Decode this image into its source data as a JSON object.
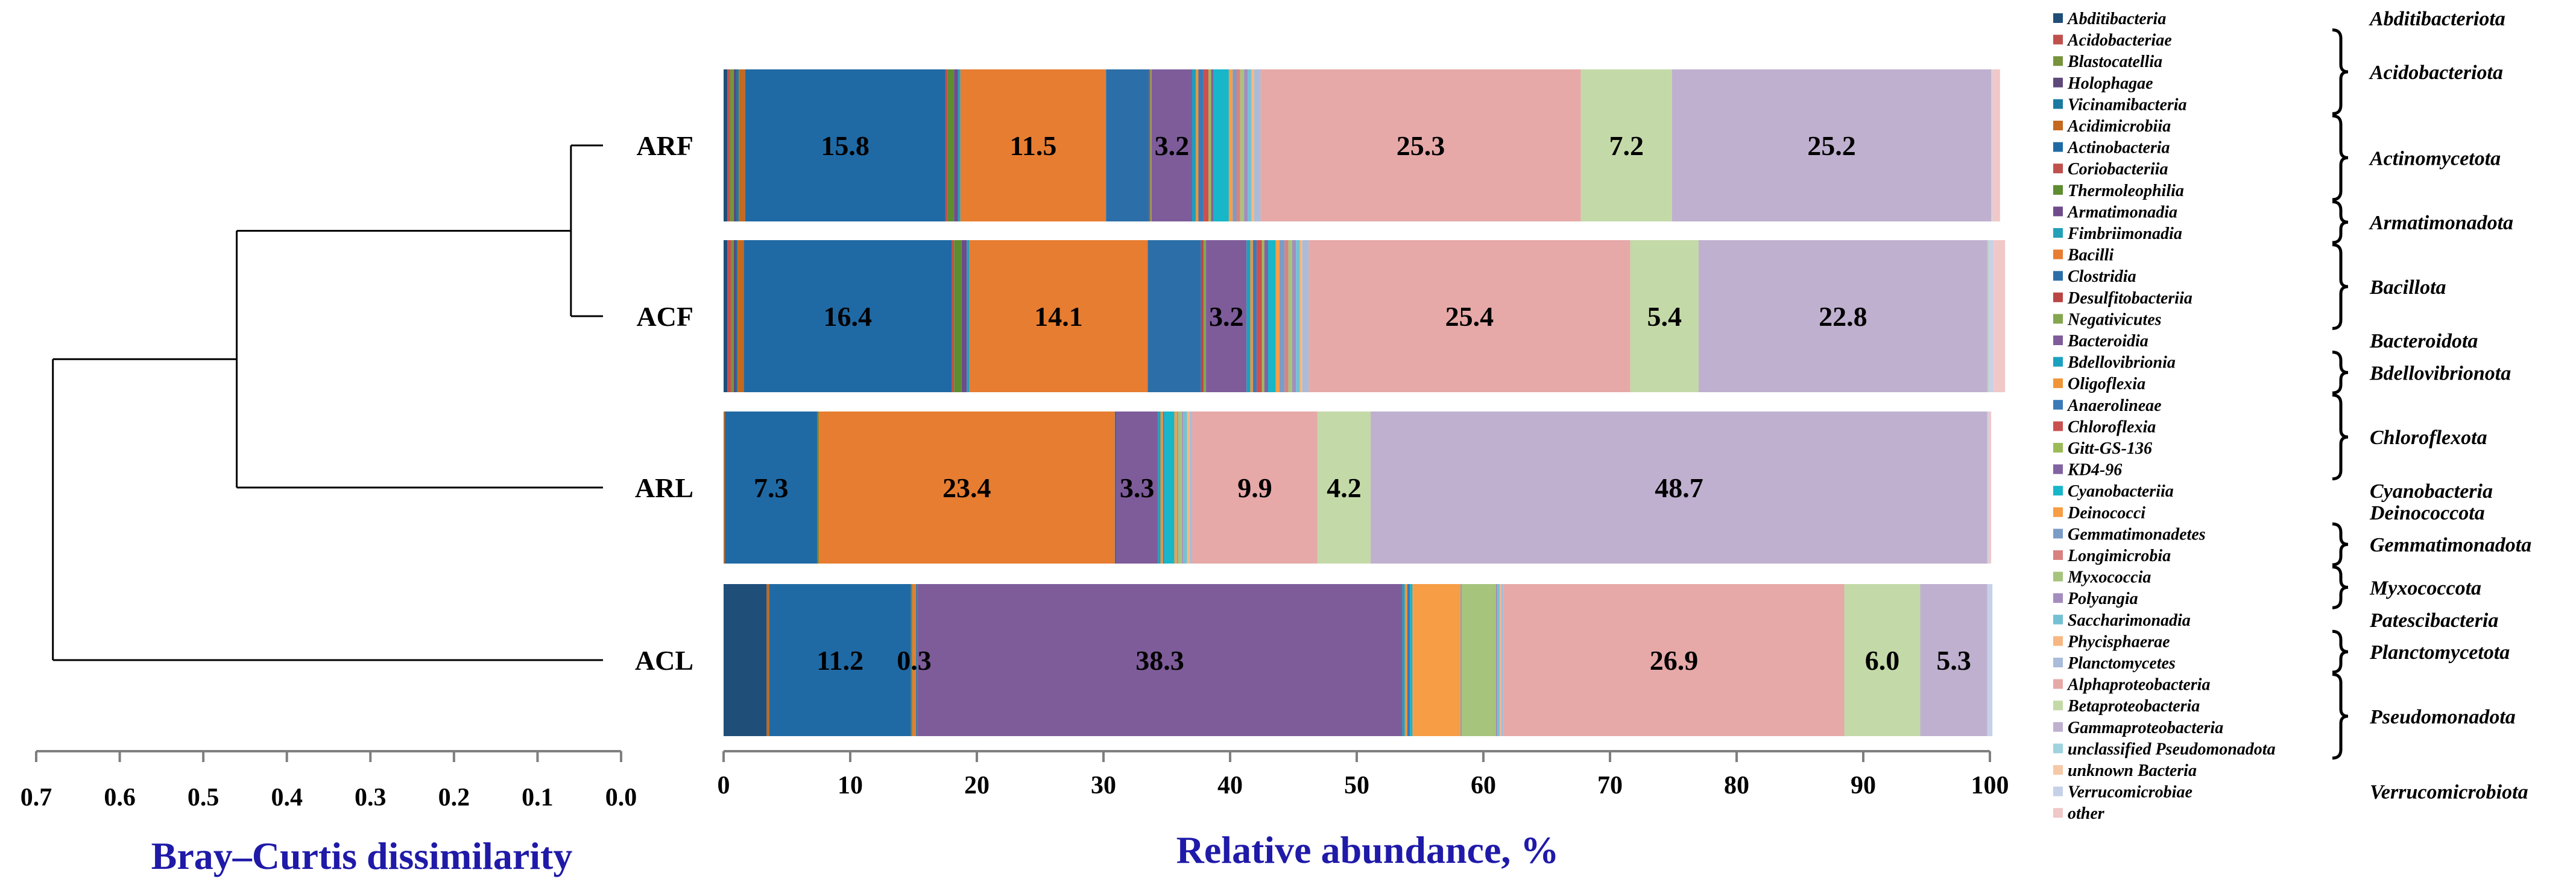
{
  "chart_data": {
    "type": "stacked-bar-with-dendrogram",
    "samples": [
      "ARF",
      "ACF",
      "ARL",
      "ACL"
    ],
    "dendrogram": {
      "xlabel": "Bray–Curtis dissimilarity",
      "xticks": [
        "0.7",
        "0.6",
        "0.5",
        "0.4",
        "0.3",
        "0.2",
        "0.1",
        "0.0"
      ],
      "xlim": [
        0.7,
        0.0
      ],
      "merges": [
        {
          "members": [
            "ARF",
            "ACF"
          ],
          "height": 0.06
        },
        {
          "members": [
            "ARF+ACF",
            "ARL"
          ],
          "height": 0.46
        },
        {
          "members": [
            "ARF+ACF+ARL",
            "ACL"
          ],
          "height": 0.68
        }
      ]
    },
    "bars": {
      "xlabel": "Relative abundance, %",
      "xticks": [
        "0",
        "10",
        "20",
        "30",
        "40",
        "50",
        "60",
        "70",
        "80",
        "90",
        "100"
      ],
      "xlim": [
        0,
        100
      ]
    },
    "series": [
      {
        "name": "Abditibacteria",
        "color": "#1f4e79",
        "highlight": false,
        "values": [
          0.3,
          0.3,
          0,
          3.4
        ]
      },
      {
        "name": "Acidobacteriae",
        "color": "#c0504d",
        "highlight": false,
        "values": [
          0.2,
          0.3,
          0,
          0
        ]
      },
      {
        "name": "Blastocatellia",
        "color": "#77933c",
        "highlight": false,
        "values": [
          0.3,
          0.2,
          0,
          0
        ]
      },
      {
        "name": "Holophagae",
        "color": "#5f497a",
        "highlight": false,
        "values": [
          0.2,
          0.2,
          0,
          0
        ]
      },
      {
        "name": "Vicinamibacteria",
        "color": "#1a7aa0",
        "highlight": false,
        "values": [
          0.2,
          0.1,
          0,
          0
        ]
      },
      {
        "name": "Acidimicrobiia",
        "color": "#c5691f",
        "highlight": false,
        "values": [
          0.5,
          0.5,
          0.1,
          0.2
        ]
      },
      {
        "name": "Actinobacteria",
        "color": "#1f6aa5",
        "highlight": true,
        "values": [
          15.8,
          16.4,
          7.3,
          11.2
        ]
      },
      {
        "name": "Coriobacteriia",
        "color": "#c0504d",
        "highlight": false,
        "values": [
          0.2,
          0.2,
          0,
          0
        ]
      },
      {
        "name": "Thermoleophilia",
        "color": "#5e8c31",
        "highlight": false,
        "values": [
          0.5,
          0.6,
          0.1,
          0.1
        ]
      },
      {
        "name": "Armatimonadia",
        "color": "#6e4c8c",
        "highlight": false,
        "values": [
          0.3,
          0.4,
          0,
          0
        ]
      },
      {
        "name": "Fimbriimonadia",
        "color": "#24a0b8",
        "highlight": false,
        "values": [
          0.2,
          0.2,
          0,
          0
        ]
      },
      {
        "name": "Bacilli",
        "color": "#e77d31",
        "highlight": true,
        "values": [
          11.5,
          14.1,
          23.4,
          0.3
        ]
      },
      {
        "name": "Clostridia",
        "color": "#2c6fa8",
        "highlight": false,
        "values": [
          3.4,
          4.2,
          0.1,
          0.1
        ]
      },
      {
        "name": "Desulfitobacteriia",
        "color": "#b94644",
        "highlight": false,
        "values": [
          0.1,
          0.2,
          0,
          0
        ]
      },
      {
        "name": "Negativicutes",
        "color": "#84a64f",
        "highlight": false,
        "values": [
          0.1,
          0.2,
          0,
          0
        ]
      },
      {
        "name": "Bacteroidia",
        "color": "#7e5c9a",
        "highlight": true,
        "values": [
          3.2,
          3.2,
          3.3,
          38.3
        ]
      },
      {
        "name": "Bdellovibrionia",
        "color": "#1aa1bf",
        "highlight": false,
        "values": [
          0.3,
          0.3,
          0.2,
          0.2
        ]
      },
      {
        "name": "Oligoflexia",
        "color": "#f09438",
        "highlight": false,
        "values": [
          0.2,
          0.2,
          0.2,
          0.2
        ]
      },
      {
        "name": "Anaerolineae",
        "color": "#3b79b7",
        "highlight": false,
        "values": [
          0.4,
          0.3,
          0.1,
          0.2
        ]
      },
      {
        "name": "Chloroflexia",
        "color": "#c9514f",
        "highlight": false,
        "values": [
          0.4,
          0.4,
          0,
          0
        ]
      },
      {
        "name": "Gitt-GS-136",
        "color": "#9cbb58",
        "highlight": false,
        "values": [
          0.2,
          0.2,
          0,
          0
        ]
      },
      {
        "name": "KD4-96",
        "color": "#8163a2",
        "highlight": false,
        "values": [
          0.2,
          0.3,
          0,
          0
        ]
      },
      {
        "name": "Cyanobacteriia",
        "color": "#17b6c9",
        "highlight": false,
        "values": [
          1.2,
          0.6,
          0.8,
          0.2
        ]
      },
      {
        "name": "Deinococci",
        "color": "#f79d46",
        "highlight": false,
        "values": [
          0.3,
          0.3,
          0.2,
          3.8
        ]
      },
      {
        "name": "Gemmatimonadetes",
        "color": "#7a9cc6",
        "highlight": false,
        "values": [
          0.3,
          0.4,
          0.1,
          0.1
        ]
      },
      {
        "name": "Longimicrobia",
        "color": "#d88280",
        "highlight": false,
        "values": [
          0.3,
          0.3,
          0,
          0
        ]
      },
      {
        "name": "Myxococcia",
        "color": "#a6c47c",
        "highlight": false,
        "values": [
          0.3,
          0.3,
          0.3,
          2.7
        ]
      },
      {
        "name": "Polyangia",
        "color": "#a38dbd",
        "highlight": false,
        "values": [
          0.3,
          0.3,
          0.1,
          0.1
        ]
      },
      {
        "name": "Saccharimonadia",
        "color": "#74c1d3",
        "highlight": false,
        "values": [
          0.3,
          0.3,
          0.3,
          0.2
        ]
      },
      {
        "name": "Phycisphaerae",
        "color": "#f7b782",
        "highlight": false,
        "values": [
          0.2,
          0.2,
          0.2,
          0.1
        ]
      },
      {
        "name": "Planctomycetes",
        "color": "#a9bcd9",
        "highlight": false,
        "values": [
          0.5,
          0.5,
          0.2,
          0.2
        ]
      },
      {
        "name": "Alphaproteobacteria",
        "color": "#e6a9a8",
        "highlight": true,
        "values": [
          25.3,
          25.4,
          9.9,
          26.9
        ]
      },
      {
        "name": "Betaproteobacteria",
        "color": "#c4d9a8",
        "highlight": true,
        "values": [
          7.2,
          5.4,
          4.2,
          6.0
        ]
      },
      {
        "name": "Gammaproteobacteria",
        "color": "#bfb0cf",
        "highlight": true,
        "values": [
          25.2,
          22.8,
          48.7,
          5.3
        ]
      },
      {
        "name": "unclassified Pseudomonadota",
        "color": "#9fd3de",
        "highlight": false,
        "values": [
          0,
          0.1,
          0,
          0
        ]
      },
      {
        "name": "unknown Bacteria",
        "color": "#f5c9a8",
        "highlight": false,
        "values": [
          0,
          0.1,
          0,
          0
        ]
      },
      {
        "name": "Verrucomicrobiae",
        "color": "#c6d1e8",
        "highlight": false,
        "values": [
          0.1,
          0.3,
          0.1,
          0.4
        ]
      },
      {
        "name": "other",
        "color": "#f0c8c7",
        "highlight": false,
        "values": [
          0.6,
          0.9,
          0.2,
          0
        ]
      }
    ],
    "labeled_segments": [
      {
        "sample": "ARF",
        "series": "Actinobacteria",
        "label": "15.8"
      },
      {
        "sample": "ARF",
        "series": "Bacilli",
        "label": "11.5"
      },
      {
        "sample": "ARF",
        "series": "Bacteroidia",
        "label": "3.2"
      },
      {
        "sample": "ARF",
        "series": "Alphaproteobacteria",
        "label": "25.3"
      },
      {
        "sample": "ARF",
        "series": "Betaproteobacteria",
        "label": "7.2"
      },
      {
        "sample": "ARF",
        "series": "Gammaproteobacteria",
        "label": "25.2"
      },
      {
        "sample": "ACF",
        "series": "Actinobacteria",
        "label": "16.4"
      },
      {
        "sample": "ACF",
        "series": "Bacilli",
        "label": "14.1"
      },
      {
        "sample": "ACF",
        "series": "Bacteroidia",
        "label": "3.2"
      },
      {
        "sample": "ACF",
        "series": "Alphaproteobacteria",
        "label": "25.4"
      },
      {
        "sample": "ACF",
        "series": "Betaproteobacteria",
        "label": "5.4"
      },
      {
        "sample": "ACF",
        "series": "Gammaproteobacteria",
        "label": "22.8"
      },
      {
        "sample": "ARL",
        "series": "Actinobacteria",
        "label": "7.3"
      },
      {
        "sample": "ARL",
        "series": "Bacilli",
        "label": "23.4"
      },
      {
        "sample": "ARL",
        "series": "Bacteroidia",
        "label": "3.3"
      },
      {
        "sample": "ARL",
        "series": "Alphaproteobacteria",
        "label": "9.9"
      },
      {
        "sample": "ARL",
        "series": "Betaproteobacteria",
        "label": "4.2"
      },
      {
        "sample": "ARL",
        "series": "Gammaproteobacteria",
        "label": "48.7"
      },
      {
        "sample": "ACL",
        "series": "Actinobacteria",
        "label": "11.2"
      },
      {
        "sample": "ACL",
        "series": "Bacilli",
        "label": "0.3"
      },
      {
        "sample": "ACL",
        "series": "Bacteroidia",
        "label": "38.3"
      },
      {
        "sample": "ACL",
        "series": "Alphaproteobacteria",
        "label": "26.9"
      },
      {
        "sample": "ACL",
        "series": "Betaproteobacteria",
        "label": "6.0"
      },
      {
        "sample": "ACL",
        "series": "Gammaproteobacteria",
        "label": "5.3"
      }
    ],
    "phyla": [
      {
        "name": "Abditibacteriota",
        "first": 0,
        "last": 0
      },
      {
        "name": "Acidobacteriota",
        "first": 1,
        "last": 4
      },
      {
        "name": "Actinomycetota",
        "first": 5,
        "last": 8
      },
      {
        "name": "Armatimonadota",
        "first": 9,
        "last": 10
      },
      {
        "name": "Bacillota",
        "first": 11,
        "last": 14
      },
      {
        "name": "Bacteroidota",
        "first": 15,
        "last": 15
      },
      {
        "name": "Bdellovibrionota",
        "first": 16,
        "last": 17
      },
      {
        "name": "Chloroflexota",
        "first": 18,
        "last": 21
      },
      {
        "name": "Cyanobacteria",
        "first": 22,
        "last": 22
      },
      {
        "name": "Deinococcota",
        "first": 23,
        "last": 23
      },
      {
        "name": "Gemmatimonadota",
        "first": 24,
        "last": 25
      },
      {
        "name": "Myxococcota",
        "first": 26,
        "last": 27
      },
      {
        "name": "Patescibacteria",
        "first": 28,
        "last": 28
      },
      {
        "name": "Planctomycetota",
        "first": 29,
        "last": 30
      },
      {
        "name": "Pseudomonadota",
        "first": 31,
        "last": 34
      },
      {
        "name": "Verrucomicrobiota",
        "first": 36,
        "last": 36
      }
    ],
    "highlight_color": "#ff0000"
  }
}
